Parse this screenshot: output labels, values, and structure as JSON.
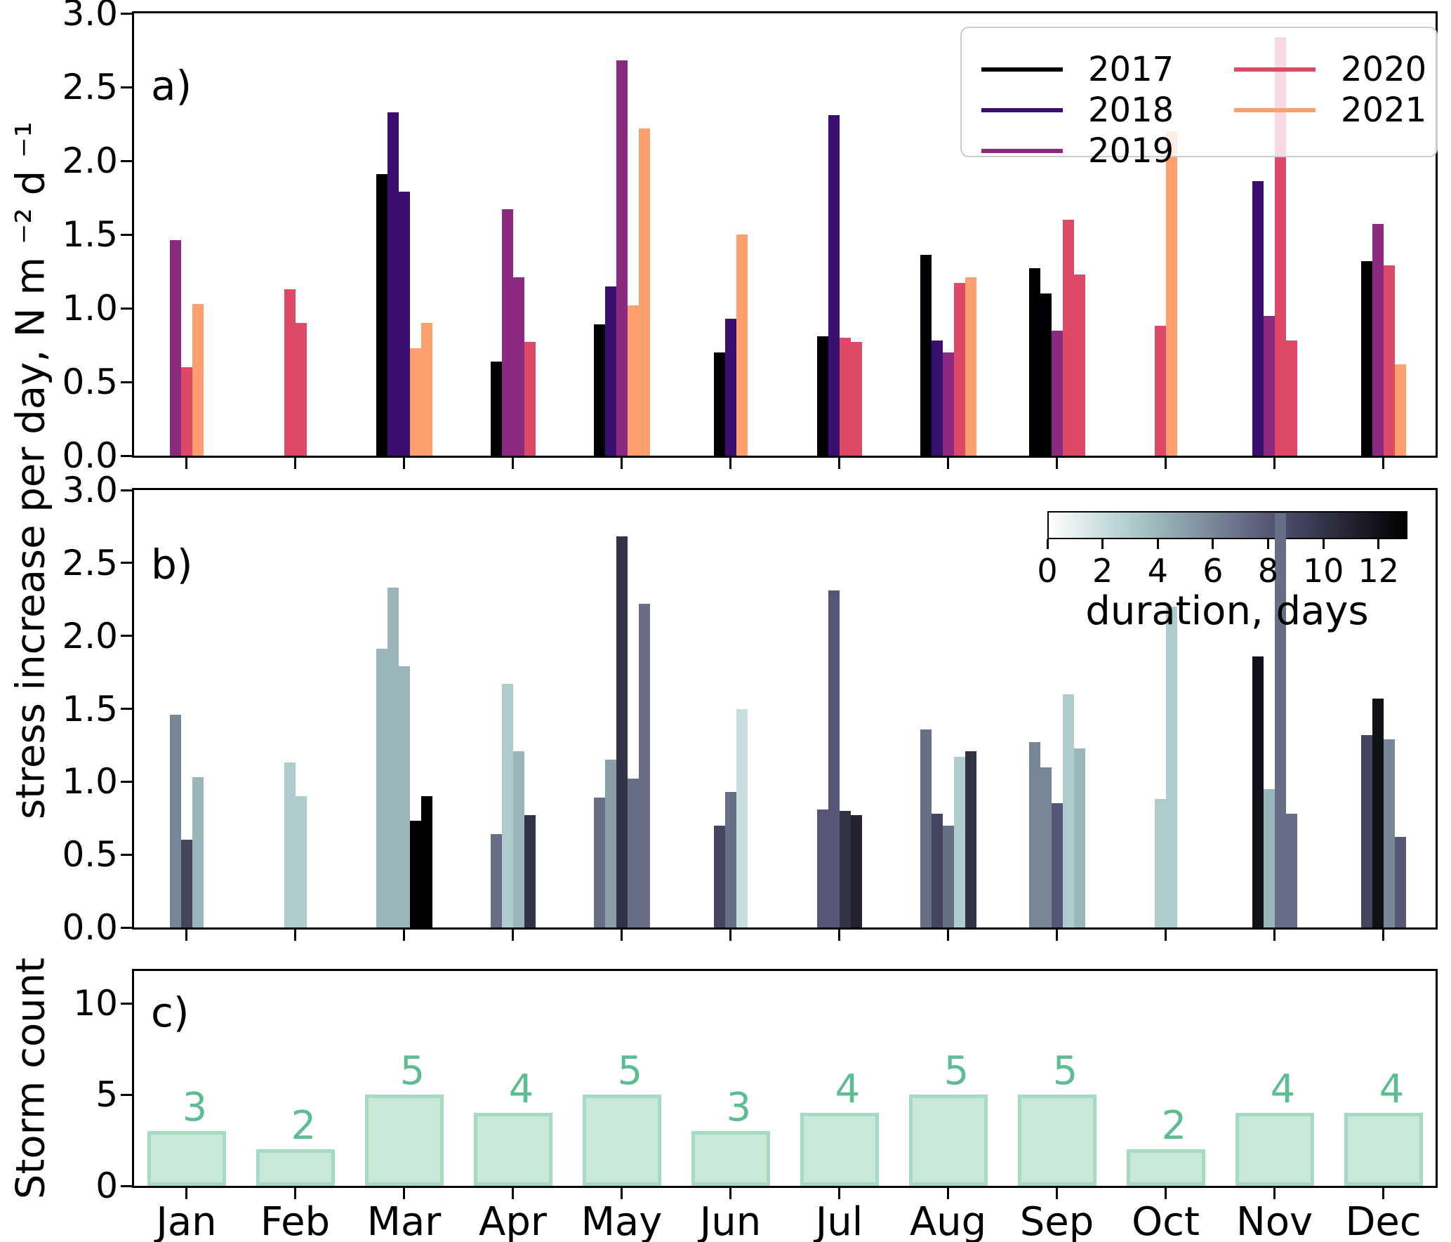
{
  "figure": {
    "background": "#ffffff",
    "font_color": "#000000"
  },
  "chart_data": [
    {
      "id": "a",
      "type": "bar",
      "panel_label": "a)",
      "ylabel": "stress increase per day, N m ⁻² d ⁻¹",
      "ylim": [
        0.0,
        3.0
      ],
      "yticks": [
        "0.0",
        "0.5",
        "1.0",
        "1.5",
        "2.0",
        "2.5",
        "3.0"
      ],
      "grid": false,
      "color_by": "year",
      "legend": {
        "position": "upper right",
        "columns": 2,
        "entries": [
          {
            "label": "2017",
            "color": "#000004"
          },
          {
            "label": "2018",
            "color": "#3b0f70"
          },
          {
            "label": "2019",
            "color": "#8c2981"
          },
          {
            "label": "2020",
            "color": "#de4968"
          },
          {
            "label": "2021",
            "color": "#fe9f6d"
          }
        ]
      },
      "categories": [
        "Jan",
        "Feb",
        "Mar",
        "Apr",
        "May",
        "Jun",
        "Jul",
        "Aug",
        "Sep",
        "Oct",
        "Nov",
        "Dec"
      ],
      "bars": [
        {
          "month": "Jan",
          "year": "2019",
          "value": 1.46,
          "duration_days": 6
        },
        {
          "month": "Jan",
          "year": "2020",
          "value": 0.6,
          "duration_days": 9
        },
        {
          "month": "Jan",
          "year": "2021",
          "value": 1.03,
          "duration_days": 4
        },
        {
          "month": "Feb",
          "year": "2020",
          "value": 1.13,
          "duration_days": 3
        },
        {
          "month": "Feb",
          "year": "2020",
          "value": 0.9,
          "duration_days": 3
        },
        {
          "month": "Mar",
          "year": "2017",
          "value": 1.91,
          "duration_days": 4
        },
        {
          "month": "Mar",
          "year": "2018",
          "value": 2.33,
          "duration_days": 4
        },
        {
          "month": "Mar",
          "year": "2018",
          "value": 1.79,
          "duration_days": 4
        },
        {
          "month": "Mar",
          "year": "2021",
          "value": 0.73,
          "duration_days": 13
        },
        {
          "month": "Mar",
          "year": "2021",
          "value": 0.9,
          "duration_days": 13
        },
        {
          "month": "Apr",
          "year": "2017",
          "value": 0.64,
          "duration_days": 7
        },
        {
          "month": "Apr",
          "year": "2019",
          "value": 1.67,
          "duration_days": 3
        },
        {
          "month": "Apr",
          "year": "2019",
          "value": 1.21,
          "duration_days": 4
        },
        {
          "month": "Apr",
          "year": "2020",
          "value": 0.77,
          "duration_days": 10
        },
        {
          "month": "May",
          "year": "2017",
          "value": 0.89,
          "duration_days": 7
        },
        {
          "month": "May",
          "year": "2018",
          "value": 1.15,
          "duration_days": 5
        },
        {
          "month": "May",
          "year": "2019",
          "value": 2.68,
          "duration_days": 10
        },
        {
          "month": "May",
          "year": "2021",
          "value": 1.02,
          "duration_days": 7
        },
        {
          "month": "May",
          "year": "2021",
          "value": 2.22,
          "duration_days": 7
        },
        {
          "month": "Jun",
          "year": "2017",
          "value": 0.7,
          "duration_days": 9
        },
        {
          "month": "Jun",
          "year": "2018",
          "value": 0.93,
          "duration_days": 7
        },
        {
          "month": "Jun",
          "year": "2021",
          "value": 1.5,
          "duration_days": 2
        },
        {
          "month": "Jul",
          "year": "2017",
          "value": 0.81,
          "duration_days": 8
        },
        {
          "month": "Jul",
          "year": "2018",
          "value": 2.31,
          "duration_days": 8
        },
        {
          "month": "Jul",
          "year": "2020",
          "value": 0.8,
          "duration_days": 10
        },
        {
          "month": "Jul",
          "year": "2020",
          "value": 0.77,
          "duration_days": 11
        },
        {
          "month": "Aug",
          "year": "2017",
          "value": 1.36,
          "duration_days": 7
        },
        {
          "month": "Aug",
          "year": "2018",
          "value": 0.78,
          "duration_days": 9
        },
        {
          "month": "Aug",
          "year": "2019",
          "value": 0.7,
          "duration_days": 7
        },
        {
          "month": "Aug",
          "year": "2020",
          "value": 1.17,
          "duration_days": 3
        },
        {
          "month": "Aug",
          "year": "2021",
          "value": 1.21,
          "duration_days": 10
        },
        {
          "month": "Sep",
          "year": "2017",
          "value": 1.27,
          "duration_days": 6
        },
        {
          "month": "Sep",
          "year": "2017",
          "value": 1.1,
          "duration_days": 6
        },
        {
          "month": "Sep",
          "year": "2019",
          "value": 0.85,
          "duration_days": 8
        },
        {
          "month": "Sep",
          "year": "2020",
          "value": 1.6,
          "duration_days": 3
        },
        {
          "month": "Sep",
          "year": "2020",
          "value": 1.23,
          "duration_days": 4
        },
        {
          "month": "Oct",
          "year": "2020",
          "value": 0.88,
          "duration_days": 3
        },
        {
          "month": "Oct",
          "year": "2021",
          "value": 2.2,
          "duration_days": 3
        },
        {
          "month": "Nov",
          "year": "2018",
          "value": 1.86,
          "duration_days": 12
        },
        {
          "month": "Nov",
          "year": "2019",
          "value": 0.95,
          "duration_days": 4
        },
        {
          "month": "Nov",
          "year": "2020",
          "value": 2.84,
          "duration_days": 7
        },
        {
          "month": "Nov",
          "year": "2020",
          "value": 0.78,
          "duration_days": 7
        },
        {
          "month": "Dec",
          "year": "2017",
          "value": 1.32,
          "duration_days": 9
        },
        {
          "month": "Dec",
          "year": "2019",
          "value": 1.57,
          "duration_days": 12
        },
        {
          "month": "Dec",
          "year": "2020",
          "value": 1.29,
          "duration_days": 6
        },
        {
          "month": "Dec",
          "year": "2021",
          "value": 0.62,
          "duration_days": 8
        }
      ]
    },
    {
      "id": "b",
      "type": "bar",
      "panel_label": "b)",
      "ylabel": "stress increase per day, N m ⁻² d ⁻¹",
      "ylim": [
        0.0,
        3.0
      ],
      "yticks": [
        "0.0",
        "0.5",
        "1.0",
        "1.5",
        "2.0",
        "2.5",
        "3.0"
      ],
      "grid": false,
      "bars_same_as_panel": "a",
      "color_by": "duration_days",
      "colorbar": {
        "label": "duration, days",
        "ticks": [
          "0",
          "2",
          "4",
          "6",
          "8",
          "10",
          "12"
        ],
        "vmin": 0,
        "vmax": 13,
        "colormap": "bone_r",
        "position": "upper right"
      }
    },
    {
      "id": "c",
      "type": "bar",
      "panel_label": "c)",
      "ylabel": "Storm count",
      "ylim": [
        0,
        12
      ],
      "yticks": [
        "0",
        "5",
        "10"
      ],
      "grid": false,
      "categories": [
        "Jan",
        "Feb",
        "Mar",
        "Apr",
        "May",
        "Jun",
        "Jul",
        "Aug",
        "Sep",
        "Oct",
        "Nov",
        "Dec"
      ],
      "values": [
        3,
        2,
        5,
        4,
        5,
        3,
        4,
        5,
        5,
        2,
        4,
        4
      ],
      "bar_labels": [
        "3",
        "2",
        "5",
        "4",
        "5",
        "3",
        "4",
        "5",
        "5",
        "2",
        "4",
        "4"
      ],
      "bar_fill_color": "#c9e9d8",
      "bar_edge_color": "#a5dbc2",
      "label_color": "#5cbc92"
    }
  ]
}
